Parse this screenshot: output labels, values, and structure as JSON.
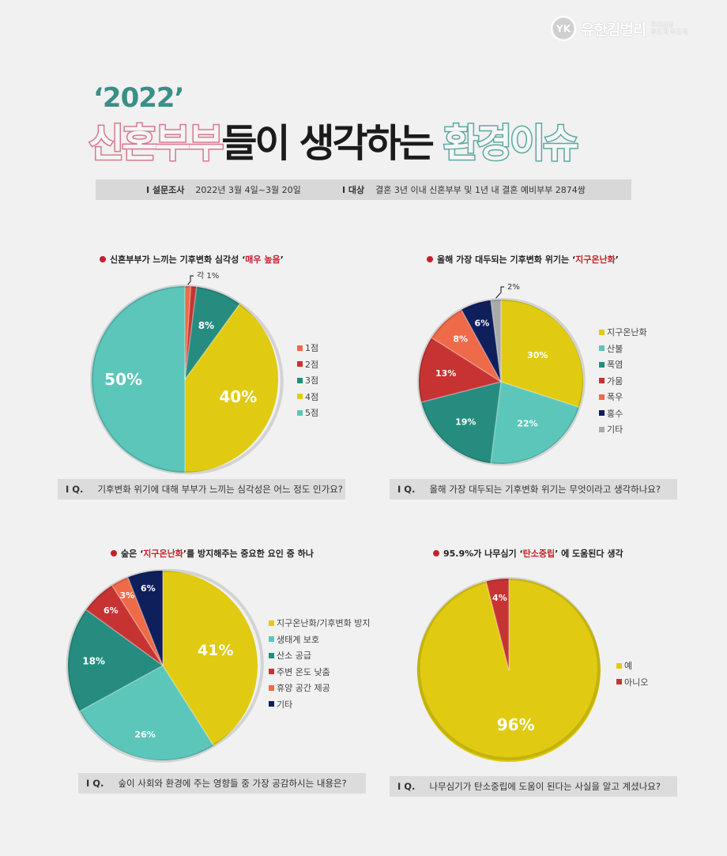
{
  "brand": {
    "name": "유한킴벌리",
    "mark": "YK",
    "slogan_line1": "우리강산",
    "slogan_line2": "푸르게 푸르게"
  },
  "title": {
    "year": "‘2022’",
    "part1": "신혼부부",
    "part2": "들이 생각하는 ",
    "part3": "환경이슈"
  },
  "survey": {
    "period_label": "I 설문조사",
    "period_value": "2022년 3월 4일~3월 20일",
    "target_label": "I 대상",
    "target_value": "결혼 3년 이내 신혼부부 및 1년 내 결혼 예비부부 2874쌍"
  },
  "colors": {
    "teal_light": "#5cc6bb",
    "teal_dark": "#268c80",
    "yellow": "#e0cb12",
    "red": "#c73333",
    "orange": "#ee6a48",
    "navy": "#0f1f5c",
    "gray": "#aaaaaa",
    "highlight": "#c5202a"
  },
  "panels": [
    {
      "title_pre": "신혼부부가 느끼는 기후변화 심각성 ‘",
      "title_hl": "매우 높음",
      "title_post": "’",
      "question_tag": "I Q.",
      "question": "기후변화 위기에 대해 부부가 느끼는 심각성은 어느 정도 인가요?"
    },
    {
      "title_pre": "올해 가장 대두되는 기후변화 위기는 ‘",
      "title_hl": "지구온난화",
      "title_post": "’",
      "question_tag": "I Q.",
      "question": "올해 가장 대두되는 기후변화 위기는 무엇이라고 생각하나요?"
    },
    {
      "title_pre": "숲은 ‘",
      "title_hl": "지구온난화",
      "title_post": "’를 방지해주는 중요한 요인 중 하나",
      "question_tag": "I Q.",
      "question": "숲이 사회와 환경에 주는 영향들 중 가장 공감하시는 내용은?"
    },
    {
      "title_pre": "95.9%가 나무심기 ‘",
      "title_hl": "탄소중립",
      "title_post": "’ 에 도움된다 생각",
      "question_tag": "I Q.",
      "question": "나무심기가 탄소중립에 도움이 된다는 사실을 알고 계셨나요?"
    }
  ],
  "chart_data": [
    {
      "type": "pie",
      "categories": [
        "1점",
        "2점",
        "3점",
        "4점",
        "5점"
      ],
      "values": [
        1,
        1,
        8,
        40,
        50
      ],
      "labels": [
        "",
        "",
        "8%",
        "40%",
        "50%"
      ],
      "callout": "각 1%",
      "colors": [
        "#ee6a48",
        "#c73333",
        "#268c80",
        "#e0cb12",
        "#5cc6bb"
      ]
    },
    {
      "type": "pie",
      "categories": [
        "지구온난화",
        "산불",
        "폭염",
        "가뭄",
        "폭우",
        "홍수",
        "기타"
      ],
      "values": [
        30,
        22,
        19,
        13,
        8,
        6,
        2
      ],
      "labels": [
        "30%",
        "22%",
        "19%",
        "13%",
        "8%",
        "6%",
        ""
      ],
      "callout": "2%",
      "colors": [
        "#e0cb12",
        "#5cc6bb",
        "#268c80",
        "#c73333",
        "#ee6a48",
        "#0f1f5c",
        "#aaaaaa"
      ]
    },
    {
      "type": "pie",
      "categories": [
        "지구온난화/기후변화 방지",
        "생태계 보호",
        "산소 공급",
        "주변 온도 낮춤",
        "휴양 공간 제공",
        "기타"
      ],
      "values": [
        41,
        26,
        18,
        6,
        3,
        6
      ],
      "labels": [
        "41%",
        "26%",
        "18%",
        "6%",
        "3%",
        "6%"
      ],
      "colors": [
        "#e0cb12",
        "#5cc6bb",
        "#268c80",
        "#c73333",
        "#ee6a48",
        "#0f1f5c"
      ]
    },
    {
      "type": "pie",
      "categories": [
        "예",
        "아니오"
      ],
      "values": [
        96,
        4
      ],
      "labels": [
        "96%",
        "4%"
      ],
      "colors": [
        "#e0cb12",
        "#c73333"
      ]
    }
  ]
}
